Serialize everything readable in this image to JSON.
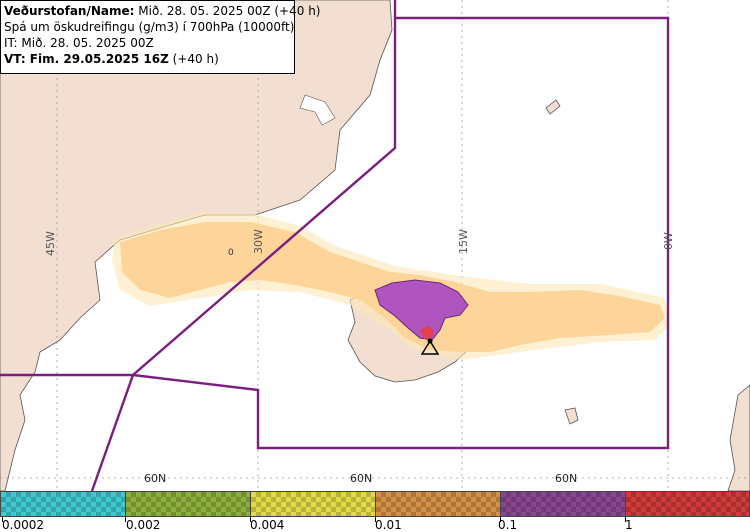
{
  "header": {
    "name_label": "Veðurstofan/Name:",
    "name_value": "Mið. 28. 05. 2025 00Z (+40 h)",
    "product": "Spá um öskudreifingu (g/m3) í 700hPa (10000ft)",
    "issue_time": "IT: Mið. 28. 05. 2025 00Z",
    "valid_label": "VT: Fim. 29.05.2025 16Z",
    "valid_offset": "(+40 h)"
  },
  "map": {
    "longitude_labels": [
      "45W",
      "30W",
      "15W",
      "0W"
    ],
    "latitude_labels": [
      "60N",
      "60N",
      "60N"
    ],
    "plume_marker": "0",
    "volcano_marker": "triangle-volcano-icon",
    "colors": {
      "land": "#f2dfd2",
      "sea": "#ffffff",
      "boundary": "#7b1f7f",
      "plume_orange": "#fdb464",
      "plume_purple": "#b055c0",
      "plume_red": "#e04050"
    }
  },
  "legend": {
    "swatches": [
      {
        "color": "#40c8d0",
        "name": "cyan"
      },
      {
        "color": "#8cae3a",
        "name": "green"
      },
      {
        "color": "#e2da46",
        "name": "yellow"
      },
      {
        "color": "#d49044",
        "name": "orange"
      },
      {
        "color": "#8a4590",
        "name": "purple"
      },
      {
        "color": "#cf3a3a",
        "name": "red"
      }
    ],
    "ticks": [
      "0.0002",
      "0.002",
      "0.004",
      "0.01",
      "0.1",
      "1"
    ]
  }
}
